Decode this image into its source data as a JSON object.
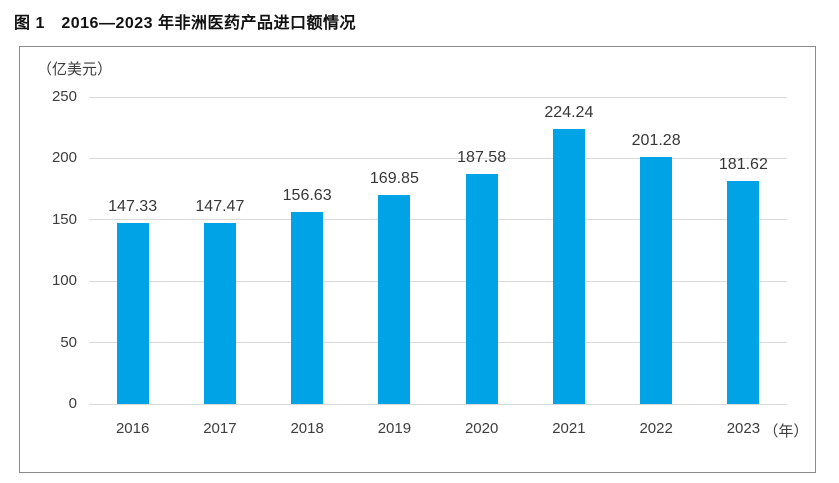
{
  "figure": {
    "caption": "图 1　2016—2023 年非洲医药产品进口额情况"
  },
  "chart_data": {
    "type": "bar",
    "title": "图 1　2016—2023 年非洲医药产品进口额情况",
    "unit_label": "（亿美元）",
    "categories": [
      "2016",
      "2017",
      "2018",
      "2019",
      "2020",
      "2021",
      "2022",
      "2023"
    ],
    "last_category_suffix": "（年）",
    "values": [
      147.33,
      147.47,
      156.63,
      169.85,
      187.58,
      224.24,
      201.28,
      181.62
    ],
    "value_labels": [
      "147.33",
      "147.47",
      "156.63",
      "169.85",
      "187.58",
      "224.24",
      "201.28",
      "181.62"
    ],
    "y_ticks": [
      0,
      50,
      100,
      150,
      200,
      250
    ],
    "ylim": [
      0,
      250
    ],
    "xlabel": "",
    "ylabel": "（亿美元）",
    "grid": true,
    "legend": false,
    "colors": {
      "bar": "#00a3e6",
      "gridline": "#d9d9d9",
      "frame_border": "#8a8a8a",
      "text": "#3d3d3d",
      "title_text": "#111111"
    }
  }
}
